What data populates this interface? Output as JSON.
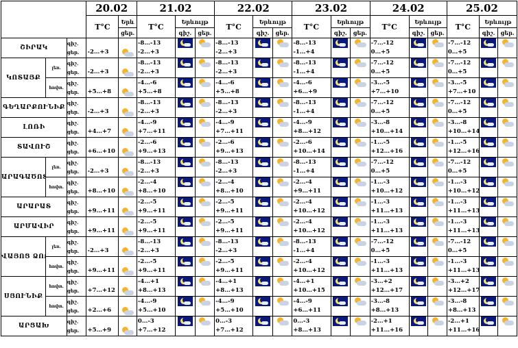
{
  "header": {
    "dates": [
      "20.02",
      "21.02",
      "22.02",
      "23.02",
      "24.02",
      "25.02"
    ],
    "temp_label": "T°C",
    "weather_label": "Երևույթ",
    "weather_label_short": "Երև",
    "night_label": "գիշ.",
    "day_label": "ցեր."
  },
  "day_night_labels": [
    "գիշ.",
    "ցեր."
  ],
  "regions": [
    {
      "name": "ՇԻՐԱԿ",
      "rows": [
        {
          "sub": "",
          "day20": "-2…+3",
          "t21": "-8…-13",
          "d21": "-2…+3",
          "t22": "-8…-13",
          "d22": "-2…+3",
          "t23": "-8…-13",
          "d23": "-1…+4",
          "t24": "-7…-12",
          "d24": "0…+5",
          "t25": "-7…-12",
          "d25": "0…+5"
        }
      ]
    },
    {
      "name": "ԿՈՏԱՅՔ",
      "rows": [
        {
          "sub": "լեռ.",
          "day20": "-2…+3",
          "t21": "-8…-13",
          "d21": "-2…+3",
          "t22": "-8…-13",
          "d22": "-2…+3",
          "t23": "-8…-13",
          "d23": "-1…+4",
          "t24": "-7…-12",
          "d24": "0…+5",
          "t25": "-7…-12",
          "d25": "0…+5"
        },
        {
          "sub": "հովտ.",
          "day20": "+5…+8",
          "t21": "-4…-6",
          "d21": "+5…+8",
          "t22": "-4…-6",
          "d22": "+5…+8",
          "t23": "-4…-6",
          "d23": "+6…+9",
          "t24": "-3…-5",
          "d24": "+7…+10",
          "t25": "-3…-5",
          "d25": "+7…+10"
        }
      ]
    },
    {
      "name": "ԳԵՂԱՐՔՈՒՆԻՔ",
      "rows": [
        {
          "sub": "",
          "day20": "-2…+3",
          "t21": "-8…-13",
          "d21": "-2…+3",
          "t22": "-8…-13",
          "d22": "-2…+3",
          "t23": "-8…-13",
          "d23": "-1…+4",
          "t24": "-7…-12",
          "d24": "0…+5",
          "t25": "-7…-12",
          "d25": "0…+5"
        }
      ]
    },
    {
      "name": "ԼՈՌԻ",
      "rows": [
        {
          "sub": "",
          "day20": "+4…+7",
          "t21": "-4…-9",
          "d21": "+7…+11",
          "t22": "-4…-9",
          "d22": "+7…+11",
          "t23": "-4…-9",
          "d23": "+8…+12",
          "t24": "-3…-8",
          "d24": "+10…+14",
          "t25": "-3…-8",
          "d25": "+10…+14"
        }
      ]
    },
    {
      "name": "ՏԱՎՈՒՇ",
      "rows": [
        {
          "sub": "",
          "day20": "+6…+10",
          "t21": "-2…-6",
          "d21": "+9…+13",
          "t22": "-2…-6",
          "d22": "+9…+13",
          "t23": "-2…-6",
          "d23": "+10…+14",
          "t24": "-1…-5",
          "d24": "+12…+16",
          "t25": "-1…-5",
          "d25": "+12…+16"
        }
      ]
    },
    {
      "name": "ԱՐԱԳԱԾՈՏՆ",
      "rows": [
        {
          "sub": "լեռ.",
          "day20": "-2…+3",
          "t21": "-8…-13",
          "d21": "-2…+3",
          "t22": "-8…-13",
          "d22": "-2…+3",
          "t23": "-8…-13",
          "d23": "-1…+4",
          "t24": "-7…-12",
          "d24": "0…+5",
          "t25": "-7…-12",
          "d25": "0…+5"
        },
        {
          "sub": "հովտ.",
          "day20": "+8…+10",
          "t21": "-2…-4",
          "d21": "+8…+10",
          "t22": "-2…-4",
          "d22": "+8…+10",
          "t23": "-2…-4",
          "d23": "+9…+11",
          "t24": "-1…-3",
          "d24": "+10…+12",
          "t25": "-1…-3",
          "d25": "+10…+12"
        }
      ]
    },
    {
      "name": "ԱՐԱՐԱՏ",
      "rows": [
        {
          "sub": "",
          "day20": "+9…+11",
          "t21": "-2…-5",
          "d21": "+9…+11",
          "t22": "-2…-5",
          "d22": "+9…+11",
          "t23": "-2…-4",
          "d23": "+10…+12",
          "t24": "-1…-3",
          "d24": "+11…+13",
          "t25": "-1…-3",
          "d25": "+11…+13"
        }
      ]
    },
    {
      "name": "ԱՐՄԱՎԻՐ",
      "rows": [
        {
          "sub": "",
          "day20": "+9…+11",
          "t21": "-2…-5",
          "d21": "+9…+11",
          "t22": "-2…-5",
          "d22": "+9…+11",
          "t23": "-2…-4",
          "d23": "+10…+12",
          "t24": "-1…-3",
          "d24": "+11…+13",
          "t25": "-1…-3",
          "d25": "+11…+13"
        }
      ]
    },
    {
      "name": "ՎԱՅՈՑ ՁՈՐ",
      "rows": [
        {
          "sub": "լեռ.",
          "day20": "-2…+3",
          "t21": "-8…-13",
          "d21": "-2…+3",
          "t22": "-8…-13",
          "d22": "-2…+3",
          "t23": "-8…-13",
          "d23": "-1…+4",
          "t24": "-7…-12",
          "d24": "0…+5",
          "t25": "-7…-12",
          "d25": "0…+5"
        },
        {
          "sub": "հովտ.",
          "day20": "+9…+11",
          "t21": "-2…-5",
          "d21": "+9…+11",
          "t22": "-2…-5",
          "d22": "+9…+11",
          "t23": "-2…-4",
          "d23": "+10…+12",
          "t24": "-1…-3",
          "d24": "+11…+13",
          "t25": "-1…-3",
          "d25": "+11…+13"
        }
      ]
    },
    {
      "name": "ՍՅՈՒՆԻՔ",
      "rows": [
        {
          "sub": "հովտ.",
          "day20": "+7…+12",
          "t21": "-4…+1",
          "d21": "+8…+13",
          "t22": "-4…+1",
          "d22": "+8…+13",
          "t23": "-4…+1",
          "d23": "+10…+15",
          "t24": "-3…+2",
          "d24": "+12…+17",
          "t25": "-3…+2",
          "d25": "+12…+17"
        },
        {
          "sub": "հովտ.",
          "day20": "+2…+6",
          "t21": "-4…-9",
          "d21": "+5…+10",
          "t22": "-4…-9",
          "d22": "+5…+10",
          "t23": "-4…-9",
          "d23": "+6…+11",
          "t24": "-3…-8",
          "d24": "+8…+13",
          "t25": "-3…-8",
          "d25": "+8…+13"
        }
      ]
    },
    {
      "name": "ԱՐՑԱԽ",
      "rows": [
        {
          "sub": "",
          "day20": "+5…+9",
          "t21": "0…-3",
          "d21": "+7…+12",
          "t22": "0…-3",
          "d22": "+7…+12",
          "t23": "0…-3",
          "d23": "+8…+13",
          "t24": "-2…+1",
          "d24": "+11…+16",
          "t25": "-2…+1",
          "d25": "+11…+16"
        }
      ]
    }
  ],
  "colors": {
    "night_bg": "#0b1a7a",
    "moon": "#f7e26b",
    "sun": "#f5b52b",
    "cloud": "#c9d3e3"
  },
  "icons": {
    "night": "moon-cloud-icon",
    "day": "sun-cloud-icon"
  }
}
